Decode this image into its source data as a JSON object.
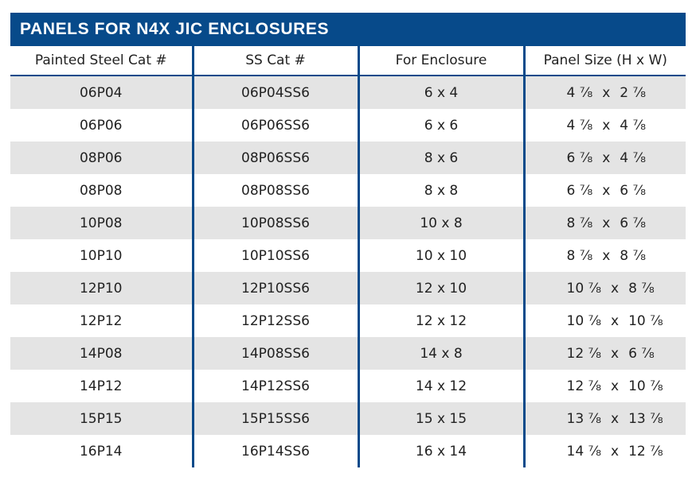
{
  "title": "PANELS FOR N4X JIC ENCLOSURES",
  "colors": {
    "header_bg": "#074a8a",
    "stripe": "#e4e4e4",
    "divider": "#074a8a"
  },
  "columns": [
    "Painted Steel Cat #",
    "SS Cat #",
    "For Enclosure",
    "Panel Size (H x W)"
  ],
  "rows": [
    {
      "painted": "06P04",
      "ss": "06P04SS6",
      "enclosure": "6 x 4",
      "h": "4 ⅞",
      "w": "2 ⅞"
    },
    {
      "painted": "06P06",
      "ss": "06P06SS6",
      "enclosure": "6 x 6",
      "h": "4 ⅞",
      "w": "4 ⅞"
    },
    {
      "painted": "08P06",
      "ss": "08P06SS6",
      "enclosure": "8 x 6",
      "h": "6 ⅞",
      "w": "4 ⅞"
    },
    {
      "painted": "08P08",
      "ss": "08P08SS6",
      "enclosure": "8 x 8",
      "h": "6 ⅞",
      "w": "6 ⅞"
    },
    {
      "painted": "10P08",
      "ss": "10P08SS6",
      "enclosure": "10 x 8",
      "h": "8 ⅞",
      "w": "6 ⅞"
    },
    {
      "painted": "10P10",
      "ss": "10P10SS6",
      "enclosure": "10 x 10",
      "h": "8 ⅞",
      "w": "8 ⅞"
    },
    {
      "painted": "12P10",
      "ss": "12P10SS6",
      "enclosure": "12 x 10",
      "h": "10 ⅞",
      "w": "8 ⅞"
    },
    {
      "painted": "12P12",
      "ss": "12P12SS6",
      "enclosure": "12 x 12",
      "h": "10 ⅞",
      "w": "10 ⅞"
    },
    {
      "painted": "14P08",
      "ss": "14P08SS6",
      "enclosure": "14 x 8",
      "h": "12 ⅞",
      "w": "6 ⅞"
    },
    {
      "painted": "14P12",
      "ss": "14P12SS6",
      "enclosure": "14 x 12",
      "h": "12 ⅞",
      "w": "10 ⅞"
    },
    {
      "painted": "15P15",
      "ss": "15P15SS6",
      "enclosure": "15 x 15",
      "h": "13 ⅞",
      "w": "13 ⅞"
    },
    {
      "painted": "16P14",
      "ss": "16P14SS6",
      "enclosure": "16 x 14",
      "h": "14 ⅞",
      "w": "12 ⅞"
    }
  ]
}
